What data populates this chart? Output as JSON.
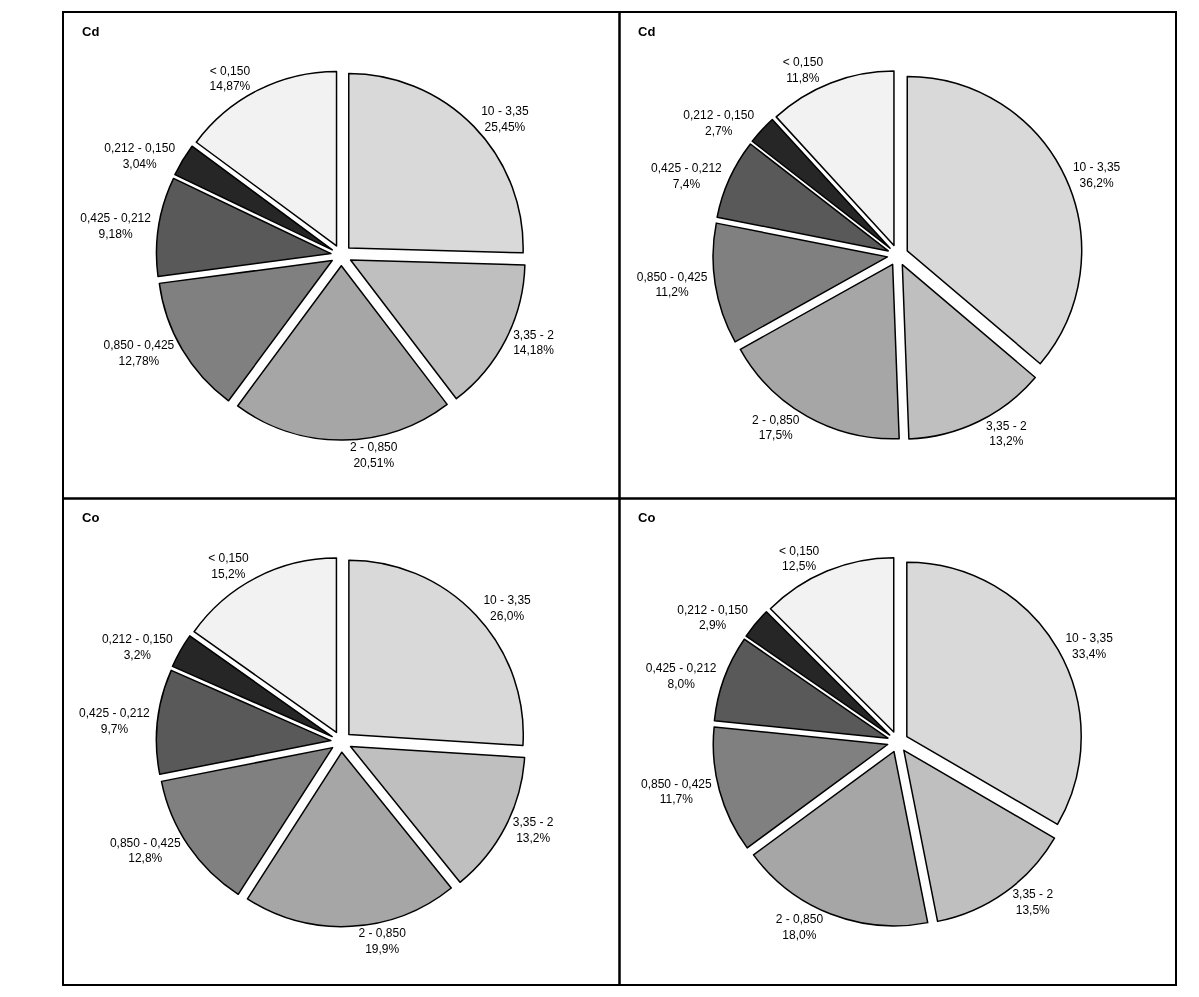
{
  "chart_data": [
    {
      "type": "pie",
      "title": "Cd",
      "categories": [
        "10 - 3,35",
        "3,35 - 2",
        "2 - 0,850",
        "0,850 - 0,425",
        "0,425 - 0,212",
        "0,212 - 0,150",
        "< 0,150"
      ],
      "values": [
        25.45,
        14.18,
        20.51,
        12.78,
        9.18,
        3.04,
        14.87
      ],
      "value_labels": [
        "25,45%",
        "14,18%",
        "20,51%",
        "12,78%",
        "9,18%",
        "3,04%",
        "14,87%"
      ],
      "colors": [
        "#d9d9d9",
        "#bfbfbf",
        "#a6a6a6",
        "#808080",
        "#595959",
        "#262626",
        "#f2f2f2"
      ]
    },
    {
      "type": "pie",
      "title": "Cd",
      "categories": [
        "10 - 3,35",
        "3,35 - 2",
        "2 - 0,850",
        "0,850 - 0,425",
        "0,425 - 0,212",
        "0,212 - 0,150",
        "< 0,150"
      ],
      "values": [
        36.2,
        13.2,
        17.5,
        11.2,
        7.4,
        2.7,
        11.8
      ],
      "value_labels": [
        "36,2%",
        "13,2%",
        "17,5%",
        "11,2%",
        "7,4%",
        "2,7%",
        "11,8%"
      ],
      "colors": [
        "#d9d9d9",
        "#bfbfbf",
        "#a6a6a6",
        "#808080",
        "#595959",
        "#262626",
        "#f2f2f2"
      ]
    },
    {
      "type": "pie",
      "title": "Co",
      "categories": [
        "10 - 3,35",
        "3,35 - 2",
        "2 - 0,850",
        "0,850 - 0,425",
        "0,425 - 0,212",
        "0,212 - 0,150",
        "< 0,150"
      ],
      "values": [
        26.0,
        13.2,
        19.9,
        12.8,
        9.7,
        3.2,
        15.2
      ],
      "value_labels": [
        "26,0%",
        "13,2%",
        "19,9%",
        "12,8%",
        "9,7%",
        "3,2%",
        "15,2%"
      ],
      "colors": [
        "#d9d9d9",
        "#bfbfbf",
        "#a6a6a6",
        "#808080",
        "#595959",
        "#262626",
        "#f2f2f2"
      ]
    },
    {
      "type": "pie",
      "title": "Co",
      "categories": [
        "10 - 3,35",
        "3,35 - 2",
        "2 - 0,850",
        "0,850 - 0,425",
        "0,425 - 0,212",
        "0,212 - 0,150",
        "< 0,150"
      ],
      "values": [
        33.4,
        13.5,
        18.0,
        11.7,
        8.0,
        2.9,
        12.5
      ],
      "value_labels": [
        "33,4%",
        "13,5%",
        "18,0%",
        "11,7%",
        "8,0%",
        "2,9%",
        "12,5%"
      ],
      "colors": [
        "#d9d9d9",
        "#bfbfbf",
        "#a6a6a6",
        "#808080",
        "#595959",
        "#262626",
        "#f2f2f2"
      ]
    }
  ]
}
